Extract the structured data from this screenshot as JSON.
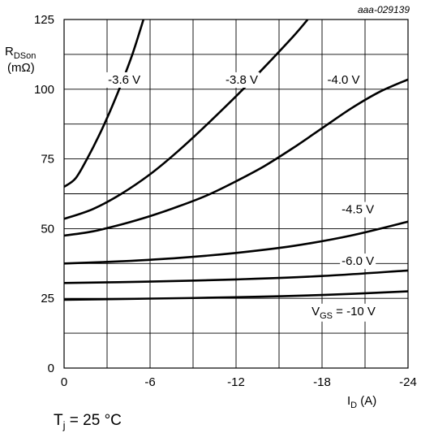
{
  "chart_data": {
    "type": "line",
    "ref_code": "aaa-029139",
    "ylabel_main": "R",
    "ylabel_sub": "DSon",
    "ylabel_unit": "(mΩ)",
    "xlabel_main": "I",
    "xlabel_sub": "D",
    "xlabel_unit": " (A)",
    "xlim": [
      0,
      -24
    ],
    "ylim": [
      0,
      125
    ],
    "x_ticks": [
      0,
      -6,
      -12,
      -18,
      -24
    ],
    "x_tick_labels": [
      "0",
      "-6",
      "-12",
      "-18",
      "-24"
    ],
    "y_ticks": [
      0,
      25,
      50,
      75,
      100,
      125
    ],
    "y_tick_labels": [
      "0",
      "25",
      "50",
      "75",
      "100",
      "125"
    ],
    "grid": true,
    "series": [
      {
        "label": "-3.6 V",
        "label_at": [
          -4.2,
          102
        ],
        "points": [
          [
            0,
            65
          ],
          [
            -0.8,
            68
          ],
          [
            -1.6,
            75
          ],
          [
            -2.4,
            83
          ],
          [
            -3.2,
            92
          ],
          [
            -4.0,
            102
          ],
          [
            -4.8,
            113
          ],
          [
            -5.6,
            126
          ]
        ]
      },
      {
        "label": "-3.8 V",
        "label_at": [
          -12.4,
          102
        ],
        "points": [
          [
            0,
            53.5
          ],
          [
            -2,
            57
          ],
          [
            -4,
            62.5
          ],
          [
            -6,
            69.5
          ],
          [
            -8,
            78
          ],
          [
            -10,
            87.5
          ],
          [
            -12,
            97.5
          ],
          [
            -14,
            108
          ],
          [
            -16,
            119
          ],
          [
            -17,
            125
          ]
        ]
      },
      {
        "label": "-4.0 V",
        "label_at": [
          -19.5,
          102
        ],
        "points": [
          [
            0,
            47.5
          ],
          [
            -2,
            49
          ],
          [
            -4,
            51.5
          ],
          [
            -6,
            54.5
          ],
          [
            -8,
            58
          ],
          [
            -10,
            62
          ],
          [
            -12,
            67
          ],
          [
            -14,
            72.5
          ],
          [
            -16,
            79
          ],
          [
            -18,
            86
          ],
          [
            -20,
            93
          ],
          [
            -22,
            99
          ],
          [
            -24,
            103.5
          ]
        ]
      },
      {
        "label": "-4.5 V",
        "label_at": [
          -20.5,
          55.5
        ],
        "points": [
          [
            0,
            37.5
          ],
          [
            -4,
            38.3
          ],
          [
            -8,
            39.5
          ],
          [
            -12,
            41.3
          ],
          [
            -16,
            43.8
          ],
          [
            -20,
            47.5
          ],
          [
            -24,
            52.5
          ]
        ]
      },
      {
        "label": "-6.0 V",
        "label_at": [
          -20.5,
          37
        ],
        "points": [
          [
            0,
            30.5
          ],
          [
            -6,
            31
          ],
          [
            -12,
            31.8
          ],
          [
            -18,
            33
          ],
          [
            -24,
            35
          ]
        ]
      },
      {
        "label": "V",
        "label_sub": "GS",
        "label_suffix": " = -10 V",
        "label_at": [
          -19.5,
          19
        ],
        "points": [
          [
            0,
            24.5
          ],
          [
            -6,
            24.9
          ],
          [
            -12,
            25.4
          ],
          [
            -18,
            26.2
          ],
          [
            -24,
            27.5
          ]
        ]
      }
    ],
    "conditions_main": "T",
    "conditions_sub": "j",
    "conditions_suffix": " = 25 °C"
  }
}
